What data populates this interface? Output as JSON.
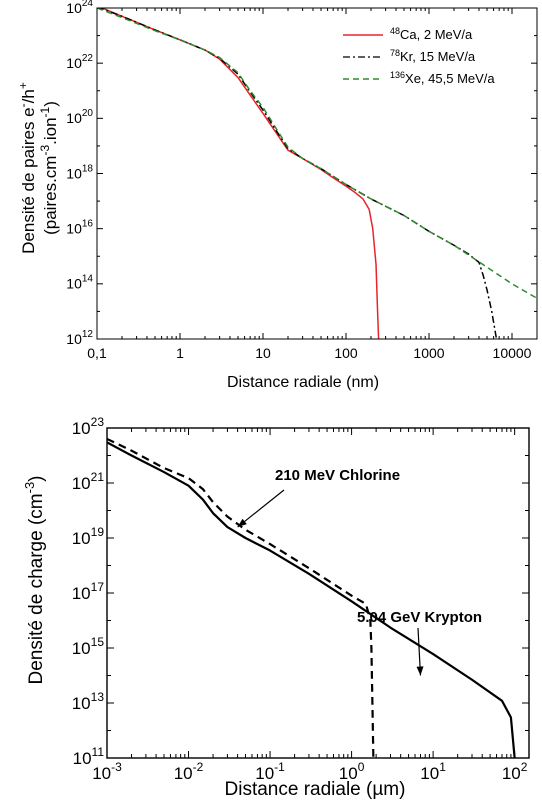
{
  "chart_data": [
    {
      "type": "line",
      "xscale": "log",
      "yscale": "log",
      "xlim": [
        0.1,
        20000
      ],
      "ylim": [
        1000000000000.0,
        1e+24
      ],
      "xticks": [
        {
          "v": 0.1,
          "label": "0,1"
        },
        {
          "v": 1,
          "label": "1"
        },
        {
          "v": 10,
          "label": "10"
        },
        {
          "v": 100,
          "label": "100"
        },
        {
          "v": 1000,
          "label": "1000"
        },
        {
          "v": 10000,
          "label": "10000"
        }
      ],
      "yticks": [
        {
          "v": 1000000000000.0,
          "base": "10",
          "exp": "12"
        },
        {
          "v": 100000000000000.0,
          "base": "10",
          "exp": "14"
        },
        {
          "v": 1e+16,
          "base": "10",
          "exp": "16"
        },
        {
          "v": 1e+18,
          "base": "10",
          "exp": "18"
        },
        {
          "v": 1e+20,
          "base": "10",
          "exp": "20"
        },
        {
          "v": 1e+22,
          "base": "10",
          "exp": "22"
        },
        {
          "v": 1e+24,
          "base": "10",
          "exp": "24"
        }
      ],
      "xlabel": "Distance radiale (nm)",
      "ylabel": {
        "line1_prefix": "Densité de paires e",
        "line1_sup1": "-",
        "line1_mid": "/h",
        "line1_sup2": "+",
        "line2_prefix": "(paires.cm",
        "line2_sup1": "-3",
        "line2_mid": ".ion",
        "line2_sup2": "-1",
        "line2_suffix": ")"
      },
      "legend_position": "top-right",
      "series": [
        {
          "name": "Ca, 2 MeV/a",
          "name_sup": "48",
          "color": "#e8232a",
          "style": "solid",
          "points": [
            [
              0.1,
              1.2e+24
            ],
            [
              0.2,
              5e+23
            ],
            [
              0.5,
              1.6e+23
            ],
            [
              1,
              7e+22
            ],
            [
              2,
              3e+22
            ],
            [
              3,
              1.4e+22
            ],
            [
              5,
              3e+21
            ],
            [
              7,
              7e+20
            ],
            [
              10,
              1.5e+20
            ],
            [
              15,
              2.5e+19
            ],
            [
              20,
              7e+18
            ],
            [
              30,
              3.5e+18
            ],
            [
              50,
              1.4e+18
            ],
            [
              70,
              7e+17
            ],
            [
              100,
              3.5e+17
            ],
            [
              130,
              2e+17
            ],
            [
              160,
              1.2e+17
            ],
            [
              190,
              5e+16
            ],
            [
              210,
              1e+16
            ],
            [
              230,
              500000000000000.0
            ],
            [
              240,
              10000000000000.0
            ],
            [
              247,
              1000000000000.0
            ]
          ]
        },
        {
          "name": "Kr, 15 MeV/a",
          "name_sup": "78",
          "color": "#000000",
          "style": "dashdot",
          "points": [
            [
              0.1,
              1.1e+24
            ],
            [
              0.2,
              5e+23
            ],
            [
              0.5,
              1.6e+23
            ],
            [
              1,
              7e+22
            ],
            [
              2,
              3e+22
            ],
            [
              3,
              1.5e+22
            ],
            [
              5,
              4e+21
            ],
            [
              7,
              9e+20
            ],
            [
              10,
              2e+20
            ],
            [
              15,
              3e+19
            ],
            [
              20,
              8e+18
            ],
            [
              30,
              3.5e+18
            ],
            [
              50,
              1.5e+18
            ],
            [
              100,
              4e+17
            ],
            [
              200,
              1.2e+17
            ],
            [
              500,
              3e+16
            ],
            [
              1000,
              8000000000000000.0
            ],
            [
              2000,
              2500000000000000.0
            ],
            [
              3000,
              1200000000000000.0
            ],
            [
              4000,
              600000000000000.0
            ],
            [
              4500,
              200000000000000.0
            ],
            [
              5000,
              60000000000000.0
            ],
            [
              5700,
              10000000000000.0
            ],
            [
              6500,
              1000000000000.0
            ]
          ]
        },
        {
          "name": "Xe, 45,5 MeV/a",
          "name_sup": "136",
          "color": "#2e8b2e",
          "style": "dashed",
          "points": [
            [
              0.1,
              1e+24
            ],
            [
              0.2,
              4.5e+23
            ],
            [
              0.5,
              1.5e+23
            ],
            [
              1,
              7e+22
            ],
            [
              2,
              3e+22
            ],
            [
              3,
              1.6e+22
            ],
            [
              5,
              4.5e+21
            ],
            [
              7,
              1e+21
            ],
            [
              10,
              2.5e+20
            ],
            [
              15,
              3.5e+19
            ],
            [
              20,
              9e+18
            ],
            [
              30,
              3.5e+18
            ],
            [
              50,
              1.5e+18
            ],
            [
              100,
              4e+17
            ],
            [
              200,
              1.2e+17
            ],
            [
              500,
              3e+16
            ],
            [
              1000,
              8000000000000000.0
            ],
            [
              2000,
              2500000000000000.0
            ],
            [
              5000,
              400000000000000.0
            ],
            [
              10000,
              100000000000000.0
            ],
            [
              20000,
              30000000000000.0
            ]
          ]
        }
      ]
    },
    {
      "type": "line",
      "xscale": "log",
      "yscale": "log",
      "xlim": [
        0.001,
        150
      ],
      "ylim": [
        100000000000.0,
        1e+23
      ],
      "xticks": [
        {
          "v": 0.001,
          "base": "10",
          "exp": "-3"
        },
        {
          "v": 0.01,
          "base": "10",
          "exp": "-2"
        },
        {
          "v": 0.1,
          "base": "10",
          "exp": "-1"
        },
        {
          "v": 1,
          "base": "10",
          "exp": "0"
        },
        {
          "v": 10,
          "base": "10",
          "exp": "1"
        },
        {
          "v": 100,
          "base": "10",
          "exp": "2"
        }
      ],
      "yticks": [
        {
          "v": 100000000000.0,
          "base": "10",
          "exp": "11"
        },
        {
          "v": 10000000000000.0,
          "base": "10",
          "exp": "13"
        },
        {
          "v": 1000000000000000.0,
          "base": "10",
          "exp": "15"
        },
        {
          "v": 1e+17,
          "base": "10",
          "exp": "17"
        },
        {
          "v": 1e+19,
          "base": "10",
          "exp": "19"
        },
        {
          "v": 1e+21,
          "base": "10",
          "exp": "21"
        },
        {
          "v": 1e+23,
          "base": "10",
          "exp": "23"
        }
      ],
      "xlabel": "Distance radiale (µm)",
      "ylabel": {
        "prefix": "Densité de charge (cm",
        "sup": "-3",
        "suffix": ")"
      },
      "series": [
        {
          "name": "5.04 GeV Krypton",
          "color": "#000000",
          "style": "solid",
          "points": [
            [
              0.001,
              3e+22
            ],
            [
              0.002,
              1e+22
            ],
            [
              0.005,
              2.5e+21
            ],
            [
              0.01,
              8e+20
            ],
            [
              0.015,
              2.5e+20
            ],
            [
              0.02,
              8e+19
            ],
            [
              0.03,
              2.5e+19
            ],
            [
              0.05,
              1e+19
            ],
            [
              0.1,
              3.5e+18
            ],
            [
              0.3,
              5e+17
            ],
            [
              1,
              5e+16
            ],
            [
              3,
              5500000000000000.0
            ],
            [
              10,
              600000000000000.0
            ],
            [
              30,
              70000000000000.0
            ],
            [
              70,
              12000000000000.0
            ],
            [
              90,
              3000000000000.0
            ],
            [
              100,
              100000000000.0
            ]
          ]
        },
        {
          "name": "210 MeV Chlorine",
          "color": "#000000",
          "style": "dashed",
          "points": [
            [
              0.001,
              4e+22
            ],
            [
              0.002,
              1.5e+22
            ],
            [
              0.005,
              3.5e+21
            ],
            [
              0.01,
              1.5e+21
            ],
            [
              0.015,
              6e+20
            ],
            [
              0.02,
              2e+20
            ],
            [
              0.03,
              6e+19
            ],
            [
              0.05,
              2e+19
            ],
            [
              0.1,
              6e+18
            ],
            [
              0.3,
              8e+17
            ],
            [
              1,
              8e+16
            ],
            [
              1.5,
              4e+16
            ],
            [
              1.7,
              1e+16
            ],
            [
              1.75,
              1000000000000000.0
            ],
            [
              1.8,
              10000000000000.0
            ],
            [
              1.85,
              100000000000.0
            ]
          ]
        }
      ],
      "annotations": [
        {
          "text": "210 MeV Chlorine",
          "series": 1,
          "target": [
            0.04,
            2.5e+19
          ]
        },
        {
          "text": "5.04 GeV Krypton",
          "series": 0,
          "target": [
            7,
            100000000000000.0
          ]
        }
      ]
    }
  ]
}
